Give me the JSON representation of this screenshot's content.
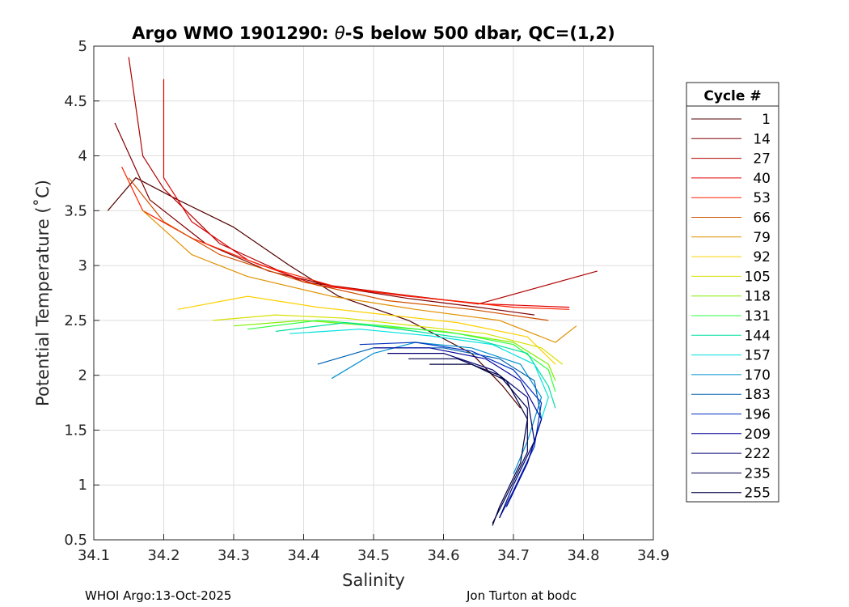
{
  "figure": {
    "footer_left": "WHOI Argo:13-Oct-2025",
    "footer_right": "Jon Turton at bodc"
  },
  "chart_data": {
    "type": "line",
    "title_prefix": "Argo WMO 1901290: ",
    "title_symbol": "θ",
    "title_suffix": "-S below 500 dbar,  QC=(1,2)",
    "xlabel": "Salinity",
    "ylabel": "Potential Temperature (˚C)",
    "xlim": [
      34.1,
      34.9
    ],
    "ylim": [
      0.5,
      5
    ],
    "xticks": [
      "34.1",
      "34.2",
      "34.3",
      "34.4",
      "34.5",
      "34.6",
      "34.7",
      "34.8",
      "34.9"
    ],
    "yticks": [
      "0.5",
      "1",
      "1.5",
      "2",
      "2.5",
      "3",
      "3.5",
      "4",
      "4.5",
      "5"
    ],
    "grid": true,
    "legend_position": "right",
    "legend_title": "Cycle #",
    "legend": [
      {
        "label": "1",
        "color": "#520000"
      },
      {
        "label": "14",
        "color": "#800000"
      },
      {
        "label": "27",
        "color": "#b00000"
      },
      {
        "label": "40",
        "color": "#e00000"
      },
      {
        "label": "53",
        "color": "#ff2000"
      },
      {
        "label": "66",
        "color": "#d05000"
      },
      {
        "label": "79",
        "color": "#e09000"
      },
      {
        "label": "92",
        "color": "#ffd000"
      },
      {
        "label": "105",
        "color": "#d8e000"
      },
      {
        "label": "118",
        "color": "#80f000"
      },
      {
        "label": "131",
        "color": "#30ff40"
      },
      {
        "label": "144",
        "color": "#00e0a0"
      },
      {
        "label": "157",
        "color": "#00e0e0"
      },
      {
        "label": "170",
        "color": "#0090d0"
      },
      {
        "label": "183",
        "color": "#0060b0"
      },
      {
        "label": "196",
        "color": "#0030c0"
      },
      {
        "label": "209",
        "color": "#000098"
      },
      {
        "label": "222",
        "color": "#000070"
      },
      {
        "label": "235",
        "color": "#000050"
      },
      {
        "label": "255",
        "color": "#000040"
      }
    ],
    "series": [
      {
        "name": "1",
        "color": "#520000",
        "points": [
          [
            34.12,
            3.5
          ],
          [
            34.16,
            3.8
          ],
          [
            34.22,
            3.6
          ],
          [
            34.3,
            3.35
          ],
          [
            34.38,
            3.0
          ],
          [
            34.45,
            2.72
          ],
          [
            34.55,
            2.5
          ],
          [
            34.64,
            2.2
          ],
          [
            34.685,
            1.9
          ],
          [
            34.71,
            1.7
          ]
        ]
      },
      {
        "name": "14",
        "color": "#800000",
        "points": [
          [
            34.13,
            4.3
          ],
          [
            34.18,
            3.6
          ],
          [
            34.26,
            3.2
          ],
          [
            34.35,
            2.95
          ],
          [
            34.45,
            2.8
          ],
          [
            34.55,
            2.7
          ],
          [
            34.65,
            2.62
          ],
          [
            34.73,
            2.55
          ]
        ]
      },
      {
        "name": "27",
        "color": "#b00000",
        "points": [
          [
            34.15,
            4.9
          ],
          [
            34.17,
            4.0
          ],
          [
            34.2,
            3.7
          ],
          [
            34.28,
            3.2
          ],
          [
            34.4,
            2.85
          ],
          [
            34.52,
            2.75
          ],
          [
            34.65,
            2.65
          ],
          [
            34.82,
            2.95
          ]
        ]
      },
      {
        "name": "40",
        "color": "#e00000",
        "points": [
          [
            34.2,
            4.7
          ],
          [
            34.2,
            3.8
          ],
          [
            34.24,
            3.4
          ],
          [
            34.32,
            3.05
          ],
          [
            34.42,
            2.82
          ],
          [
            34.55,
            2.72
          ],
          [
            34.66,
            2.65
          ],
          [
            34.78,
            2.62
          ]
        ]
      },
      {
        "name": "53",
        "color": "#ff2000",
        "points": [
          [
            34.14,
            3.9
          ],
          [
            34.17,
            3.5
          ],
          [
            34.24,
            3.25
          ],
          [
            34.34,
            3.0
          ],
          [
            34.45,
            2.8
          ],
          [
            34.58,
            2.7
          ],
          [
            34.7,
            2.62
          ],
          [
            34.78,
            2.6
          ]
        ]
      },
      {
        "name": "66",
        "color": "#d05000",
        "points": [
          [
            34.15,
            3.8
          ],
          [
            34.2,
            3.4
          ],
          [
            34.28,
            3.1
          ],
          [
            34.4,
            2.85
          ],
          [
            34.52,
            2.68
          ],
          [
            34.64,
            2.6
          ],
          [
            34.75,
            2.5
          ]
        ]
      },
      {
        "name": "79",
        "color": "#e09000",
        "points": [
          [
            34.17,
            3.5
          ],
          [
            34.24,
            3.1
          ],
          [
            34.32,
            2.9
          ],
          [
            34.44,
            2.72
          ],
          [
            34.56,
            2.6
          ],
          [
            34.68,
            2.5
          ],
          [
            34.76,
            2.3
          ],
          [
            34.79,
            2.45
          ]
        ]
      },
      {
        "name": "92",
        "color": "#ffd000",
        "points": [
          [
            34.22,
            2.6
          ],
          [
            34.32,
            2.72
          ],
          [
            34.42,
            2.62
          ],
          [
            34.52,
            2.55
          ],
          [
            34.62,
            2.48
          ],
          [
            34.72,
            2.35
          ],
          [
            34.76,
            2.1
          ]
        ]
      },
      {
        "name": "105",
        "color": "#d8e000",
        "points": [
          [
            34.27,
            2.5
          ],
          [
            34.36,
            2.55
          ],
          [
            34.46,
            2.52
          ],
          [
            34.56,
            2.45
          ],
          [
            34.66,
            2.38
          ],
          [
            34.74,
            2.25
          ],
          [
            34.77,
            2.1
          ]
        ]
      },
      {
        "name": "118",
        "color": "#80f000",
        "points": [
          [
            34.3,
            2.45
          ],
          [
            34.4,
            2.5
          ],
          [
            34.5,
            2.45
          ],
          [
            34.6,
            2.4
          ],
          [
            34.7,
            2.3
          ],
          [
            34.75,
            2.1
          ],
          [
            34.76,
            1.95
          ]
        ]
      },
      {
        "name": "131",
        "color": "#30ff40",
        "points": [
          [
            34.32,
            2.42
          ],
          [
            34.42,
            2.5
          ],
          [
            34.52,
            2.45
          ],
          [
            34.62,
            2.38
          ],
          [
            34.7,
            2.28
          ],
          [
            34.75,
            2.05
          ],
          [
            34.76,
            1.85
          ]
        ]
      },
      {
        "name": "144",
        "color": "#00e0a0",
        "points": [
          [
            34.36,
            2.4
          ],
          [
            34.46,
            2.48
          ],
          [
            34.56,
            2.4
          ],
          [
            34.65,
            2.32
          ],
          [
            34.72,
            2.2
          ],
          [
            34.75,
            1.9
          ],
          [
            34.76,
            1.7
          ]
        ]
      },
      {
        "name": "157",
        "color": "#00e0e0",
        "points": [
          [
            34.38,
            2.38
          ],
          [
            34.48,
            2.42
          ],
          [
            34.58,
            2.36
          ],
          [
            34.67,
            2.28
          ],
          [
            34.73,
            2.1
          ],
          [
            34.75,
            1.8
          ],
          [
            34.73,
            1.4
          ]
        ]
      },
      {
        "name": "170",
        "color": "#0090d0",
        "points": [
          [
            34.44,
            1.97
          ],
          [
            34.5,
            2.2
          ],
          [
            34.56,
            2.3
          ],
          [
            34.64,
            2.25
          ],
          [
            34.71,
            2.1
          ],
          [
            34.74,
            1.8
          ],
          [
            34.72,
            1.4
          ],
          [
            34.7,
            1.1
          ]
        ]
      },
      {
        "name": "183",
        "color": "#0060b0",
        "points": [
          [
            34.42,
            2.1
          ],
          [
            34.5,
            2.25
          ],
          [
            34.6,
            2.25
          ],
          [
            34.68,
            2.15
          ],
          [
            34.73,
            1.95
          ],
          [
            34.74,
            1.6
          ],
          [
            34.72,
            1.2
          ]
        ]
      },
      {
        "name": "196",
        "color": "#0030c0",
        "points": [
          [
            34.48,
            2.28
          ],
          [
            34.56,
            2.3
          ],
          [
            34.64,
            2.22
          ],
          [
            34.7,
            2.05
          ],
          [
            34.74,
            1.75
          ],
          [
            34.73,
            1.35
          ],
          [
            34.7,
            0.95
          ],
          [
            34.68,
            0.7
          ]
        ]
      },
      {
        "name": "209",
        "color": "#000098",
        "points": [
          [
            34.5,
            2.25
          ],
          [
            34.58,
            2.25
          ],
          [
            34.66,
            2.15
          ],
          [
            34.71,
            1.95
          ],
          [
            34.74,
            1.6
          ],
          [
            34.72,
            1.2
          ],
          [
            34.69,
            0.8
          ]
        ]
      },
      {
        "name": "222",
        "color": "#000070",
        "points": [
          [
            34.52,
            2.2
          ],
          [
            34.6,
            2.2
          ],
          [
            34.67,
            2.05
          ],
          [
            34.72,
            1.8
          ],
          [
            34.73,
            1.4
          ],
          [
            34.7,
            1.0
          ],
          [
            34.68,
            0.7
          ]
        ]
      },
      {
        "name": "235",
        "color": "#000050",
        "points": [
          [
            34.55,
            2.15
          ],
          [
            34.62,
            2.15
          ],
          [
            34.68,
            2.0
          ],
          [
            34.72,
            1.7
          ],
          [
            34.72,
            1.3
          ],
          [
            34.69,
            0.9
          ],
          [
            34.67,
            0.65
          ]
        ]
      },
      {
        "name": "255",
        "color": "#000040",
        "points": [
          [
            34.58,
            2.1
          ],
          [
            34.64,
            2.1
          ],
          [
            34.69,
            1.95
          ],
          [
            34.72,
            1.6
          ],
          [
            34.71,
            1.2
          ],
          [
            34.68,
            0.8
          ],
          [
            34.67,
            0.63
          ]
        ]
      }
    ]
  }
}
